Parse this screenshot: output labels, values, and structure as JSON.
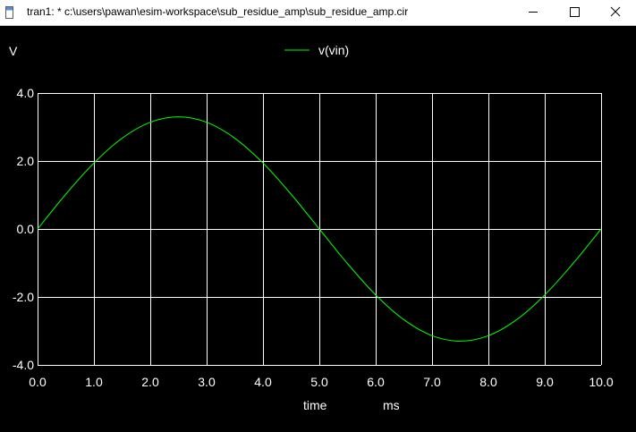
{
  "window": {
    "title": "tran1: * c:\\users\\pawan\\esim-workspace\\sub_residue_amp\\sub_residue_amp.cir",
    "icons": [
      "app-icon",
      "minimize-icon",
      "maximize-icon",
      "close-icon"
    ]
  },
  "plot": {
    "ylabel": "V",
    "xlabel": "time",
    "xunit": "ms",
    "legend": [
      "v(vin)"
    ],
    "colors": {
      "background": "#000000",
      "grid": "#ffffff",
      "trace": "#00ff00",
      "text": "#ffffff"
    }
  },
  "chart_data": {
    "type": "line",
    "title": "",
    "xlabel": "time",
    "xunit": "ms",
    "ylabel": "V",
    "xlim": [
      0.0,
      10.0
    ],
    "ylim": [
      -4.0,
      4.0
    ],
    "xticks": [
      "0.0",
      "1.0",
      "2.0",
      "3.0",
      "4.0",
      "5.0",
      "6.0",
      "7.0",
      "8.0",
      "9.0",
      "10.0"
    ],
    "yticks": [
      "4.0",
      "2.0",
      "0.0",
      "-2.0",
      "-4.0"
    ],
    "grid": true,
    "legend_position": "top-center",
    "series": [
      {
        "name": "v(vin)",
        "color": "#00ff00",
        "x": [
          0.0,
          0.5,
          1.0,
          1.5,
          2.0,
          2.5,
          3.0,
          3.5,
          4.0,
          4.5,
          5.0,
          5.5,
          6.0,
          6.5,
          7.0,
          7.5,
          8.0,
          8.5,
          9.0,
          9.5,
          10.0
        ],
        "y": [
          0.0,
          1.02,
          1.94,
          2.67,
          3.14,
          3.3,
          3.14,
          2.67,
          1.94,
          1.02,
          0.0,
          -1.02,
          -1.94,
          -2.67,
          -3.14,
          -3.3,
          -3.14,
          -2.67,
          -1.94,
          -1.02,
          0.0
        ]
      }
    ]
  }
}
